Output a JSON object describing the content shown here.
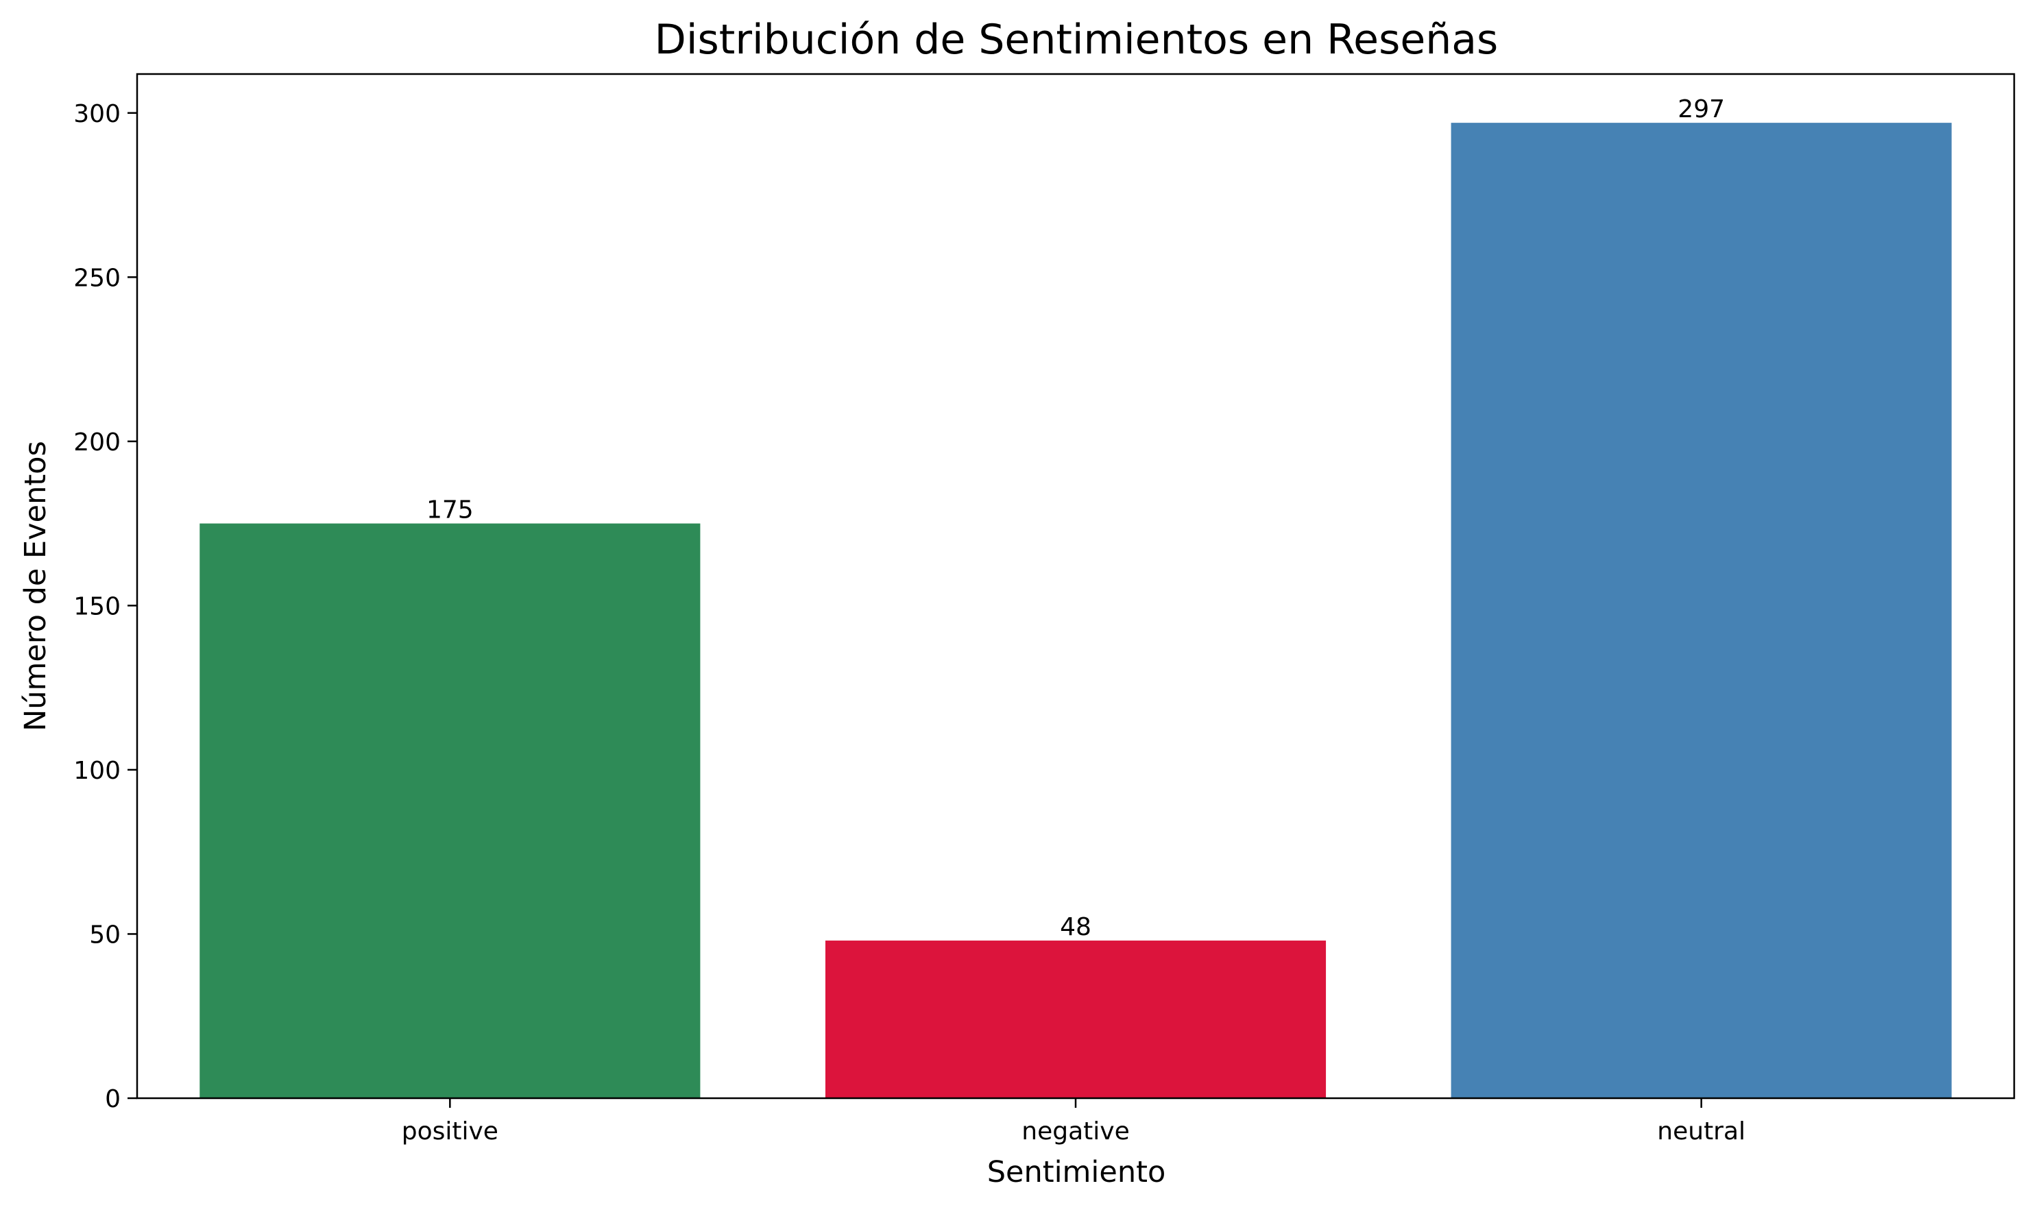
{
  "chart_data": {
    "type": "bar",
    "title": "Distribución de Sentimientos en Reseñas",
    "xlabel": "Sentimiento",
    "ylabel": "Número de Eventos",
    "categories": [
      "positive",
      "negative",
      "neutral"
    ],
    "values": [
      175,
      48,
      297
    ],
    "data_labels": [
      "175",
      "48",
      "297"
    ],
    "colors": [
      "#2e8b57",
      "#dc143c",
      "#4682b4"
    ],
    "ylim": [
      0,
      311.85
    ],
    "yticks": [
      0,
      50,
      100,
      150,
      200,
      250,
      300
    ],
    "grid": false,
    "legend": "none"
  }
}
